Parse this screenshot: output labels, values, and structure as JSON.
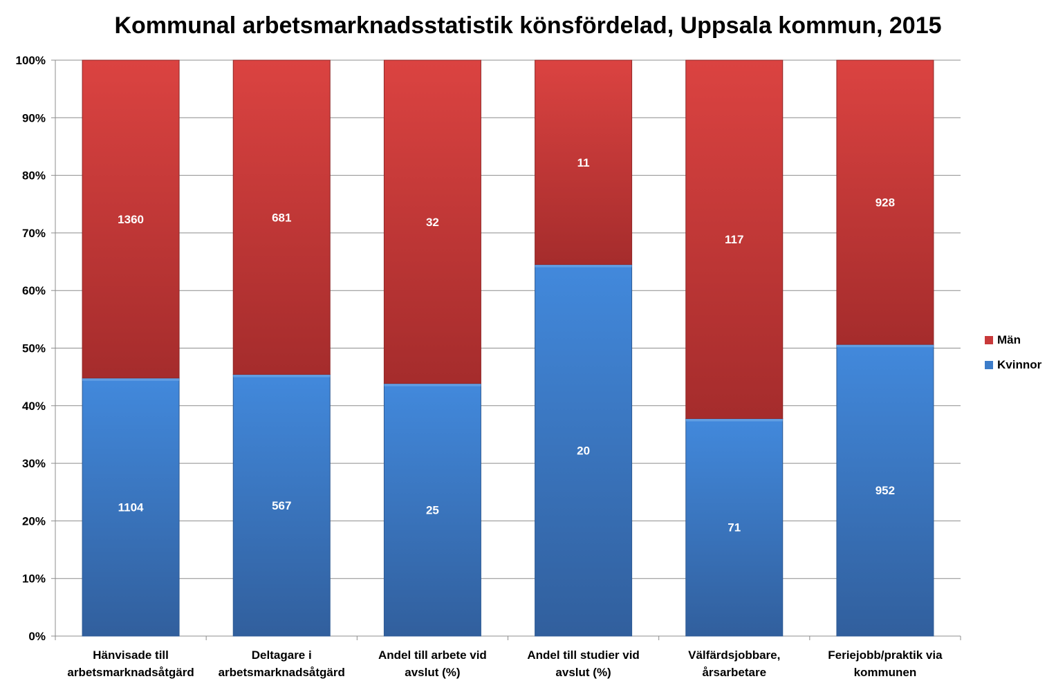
{
  "title": "Kommunal arbetsmarknadsstatistik könsfördelad, Uppsala kommun, 2015",
  "colors": {
    "man": "#c8393a",
    "kvinnor": "#3c7cc9"
  },
  "chart_data": {
    "type": "bar",
    "stacked": "percent",
    "title": "Kommunal arbetsmarknadsstatistik könsfördelad, Uppsala kommun, 2015",
    "categories": [
      [
        "Hänvisade till",
        "arbetsmarknadsåtgärd"
      ],
      [
        "Deltagare i",
        "arbetsmarknadsåtgärd"
      ],
      [
        "Andel till arbete vid",
        "avslut (%)"
      ],
      [
        "Andel till studier vid",
        "avslut (%)"
      ],
      [
        "Välfärdsjobbare,",
        "årsarbetare"
      ],
      [
        "Feriejobb/praktik via",
        "kommunen"
      ]
    ],
    "series": [
      {
        "name": "Kvinnor",
        "values": [
          1104,
          567,
          25,
          20,
          71,
          952
        ]
      },
      {
        "name": "Män",
        "values": [
          1360,
          681,
          32,
          11,
          117,
          928
        ]
      }
    ],
    "y_ticks": [
      "0%",
      "10%",
      "20%",
      "30%",
      "40%",
      "50%",
      "60%",
      "70%",
      "80%",
      "90%",
      "100%"
    ],
    "ylim": [
      0,
      100
    ],
    "grid": true,
    "legend_position": "right"
  },
  "legend": [
    {
      "name": "Män",
      "color": "#c8393a"
    },
    {
      "name": "Kvinnor",
      "color": "#3c7cc9"
    }
  ]
}
